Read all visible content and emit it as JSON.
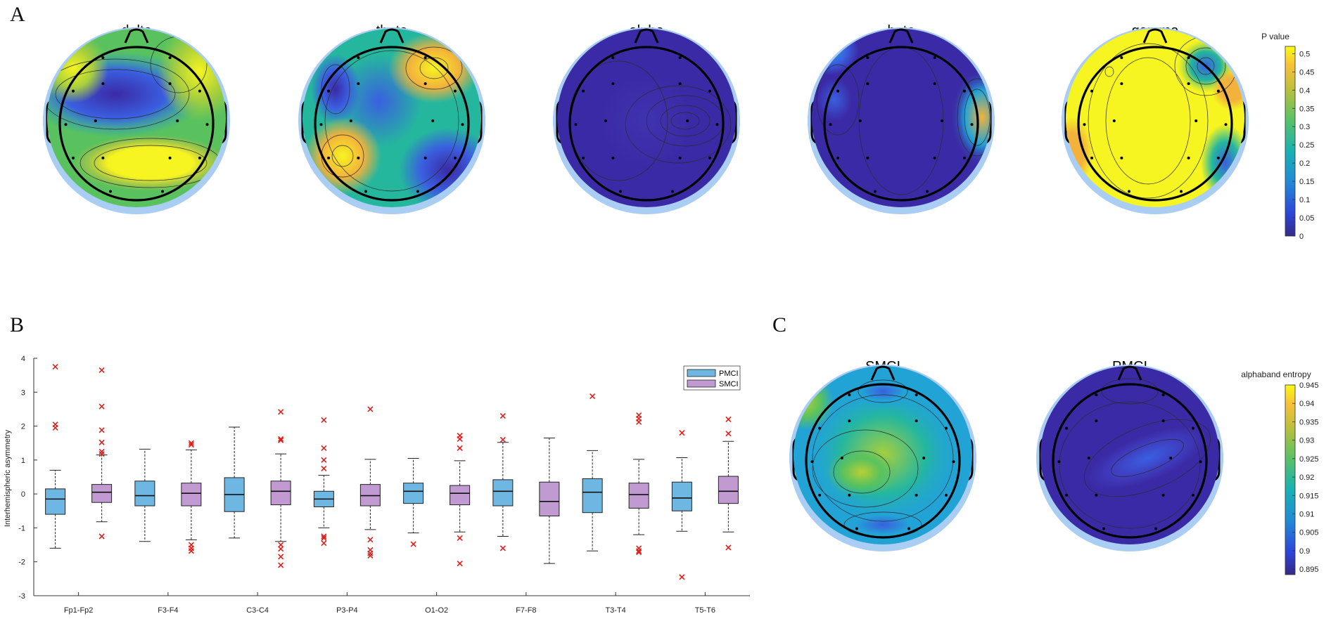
{
  "panels": {
    "a_label": "A",
    "b_label": "B",
    "c_label": "C"
  },
  "chart_data": [
    {
      "type": "heatmap",
      "name": "topographic p-value maps",
      "titles": [
        "delta",
        "theta",
        "alpha",
        "beta",
        "gamma"
      ],
      "colorbar": {
        "title": "P value",
        "range": [
          0,
          0.52
        ],
        "ticks": [
          "0",
          "0.05",
          "0.1",
          "0.15",
          "0.2",
          "0.25",
          "0.3",
          "0.35",
          "0.4",
          "0.45",
          "0.5"
        ]
      }
    },
    {
      "type": "box",
      "name": "interhemispheric asymmetry",
      "ylabel": "Interhemispheric asymmetry",
      "xlabel": "",
      "ylim": [
        -3,
        4
      ],
      "yticks": [
        "-3",
        "-2",
        "-1",
        "0",
        "1",
        "2",
        "3",
        "4"
      ],
      "categories": [
        "Fp1-Fp2",
        "F3-F4",
        "C3-C4",
        "P3-P4",
        "O1-O2",
        "F7-F8",
        "T3-T4",
        "T5-T6"
      ],
      "legend": [
        "PMCI",
        "SMCI"
      ],
      "colors": {
        "PMCI": "#6fb7e3",
        "SMCI": "#c09ad0",
        "outlier": "#e0201c"
      },
      "series": [
        {
          "name": "PMCI",
          "boxes": [
            {
              "min": -1.6,
              "q1": -0.6,
              "median": -0.15,
              "q3": 0.15,
              "max": 0.7,
              "outliers": [
                3.75,
                2.05,
                1.95
              ]
            },
            {
              "min": -1.4,
              "q1": -0.35,
              "median": -0.05,
              "q3": 0.38,
              "max": 1.32,
              "outliers": []
            },
            {
              "min": -1.3,
              "q1": -0.52,
              "median": -0.02,
              "q3": 0.48,
              "max": 1.97,
              "outliers": []
            },
            {
              "min": -1.0,
              "q1": -0.38,
              "median": -0.15,
              "q3": 0.08,
              "max": 0.55,
              "outliers": [
                2.18,
                1.35,
                1.0,
                0.75,
                -1.25,
                -1.3,
                -1.45
              ]
            },
            {
              "min": -1.15,
              "q1": -0.28,
              "median": 0.08,
              "q3": 0.32,
              "max": 1.05,
              "outliers": [
                -1.48
              ]
            },
            {
              "min": -1.25,
              "q1": -0.35,
              "median": 0.08,
              "q3": 0.42,
              "max": 1.52,
              "outliers": [
                2.3,
                1.6,
                -1.6
              ]
            },
            {
              "min": -1.68,
              "q1": -0.55,
              "median": 0.05,
              "q3": 0.45,
              "max": 1.28,
              "outliers": [
                2.88
              ]
            },
            {
              "min": -1.1,
              "q1": -0.5,
              "median": -0.12,
              "q3": 0.35,
              "max": 1.07,
              "outliers": [
                1.8,
                -2.45
              ]
            }
          ]
        },
        {
          "name": "SMCI",
          "boxes": [
            {
              "min": -0.82,
              "q1": -0.25,
              "median": 0.05,
              "q3": 0.28,
              "max": 1.15,
              "outliers": [
                3.65,
                2.58,
                1.88,
                1.52,
                1.25,
                1.18,
                -1.25
              ]
            },
            {
              "min": -1.35,
              "q1": -0.35,
              "median": 0.02,
              "q3": 0.32,
              "max": 1.3,
              "outliers": [
                1.5,
                1.45,
                -1.5,
                -1.6,
                -1.68
              ]
            },
            {
              "min": -1.4,
              "q1": -0.32,
              "median": 0.08,
              "q3": 0.38,
              "max": 1.18,
              "outliers": [
                2.42,
                1.62,
                1.58,
                -1.5,
                -1.62,
                -1.85,
                -2.1
              ]
            },
            {
              "min": -1.05,
              "q1": -0.35,
              "median": -0.05,
              "q3": 0.28,
              "max": 1.02,
              "outliers": [
                2.5,
                -1.35,
                -1.65,
                -1.75,
                -1.82
              ]
            },
            {
              "min": -1.12,
              "q1": -0.32,
              "median": 0.02,
              "q3": 0.25,
              "max": 0.98,
              "outliers": [
                1.72,
                1.62,
                1.35,
                -1.3,
                -2.05
              ]
            },
            {
              "min": -2.05,
              "q1": -0.65,
              "median": -0.22,
              "q3": 0.35,
              "max": 1.65,
              "outliers": []
            },
            {
              "min": -1.2,
              "q1": -0.42,
              "median": -0.02,
              "q3": 0.32,
              "max": 1.02,
              "outliers": [
                2.32,
                2.22,
                2.12,
                -1.6,
                -1.68,
                -1.72
              ]
            },
            {
              "min": -1.12,
              "q1": -0.28,
              "median": 0.08,
              "q3": 0.52,
              "max": 1.55,
              "outliers": [
                2.2,
                1.78,
                -1.58
              ]
            }
          ]
        }
      ]
    },
    {
      "type": "heatmap",
      "name": "alpha band entropy topomaps",
      "titles": [
        "SMCI",
        "PMCI"
      ],
      "colorbar": {
        "title": "alphaband entropy",
        "range": [
          0.8935,
          0.945
        ],
        "ticks": [
          "0.895",
          "0.9",
          "0.905",
          "0.91",
          "0.915",
          "0.92",
          "0.925",
          "0.93",
          "0.935",
          "0.94",
          "0.945"
        ]
      }
    }
  ]
}
